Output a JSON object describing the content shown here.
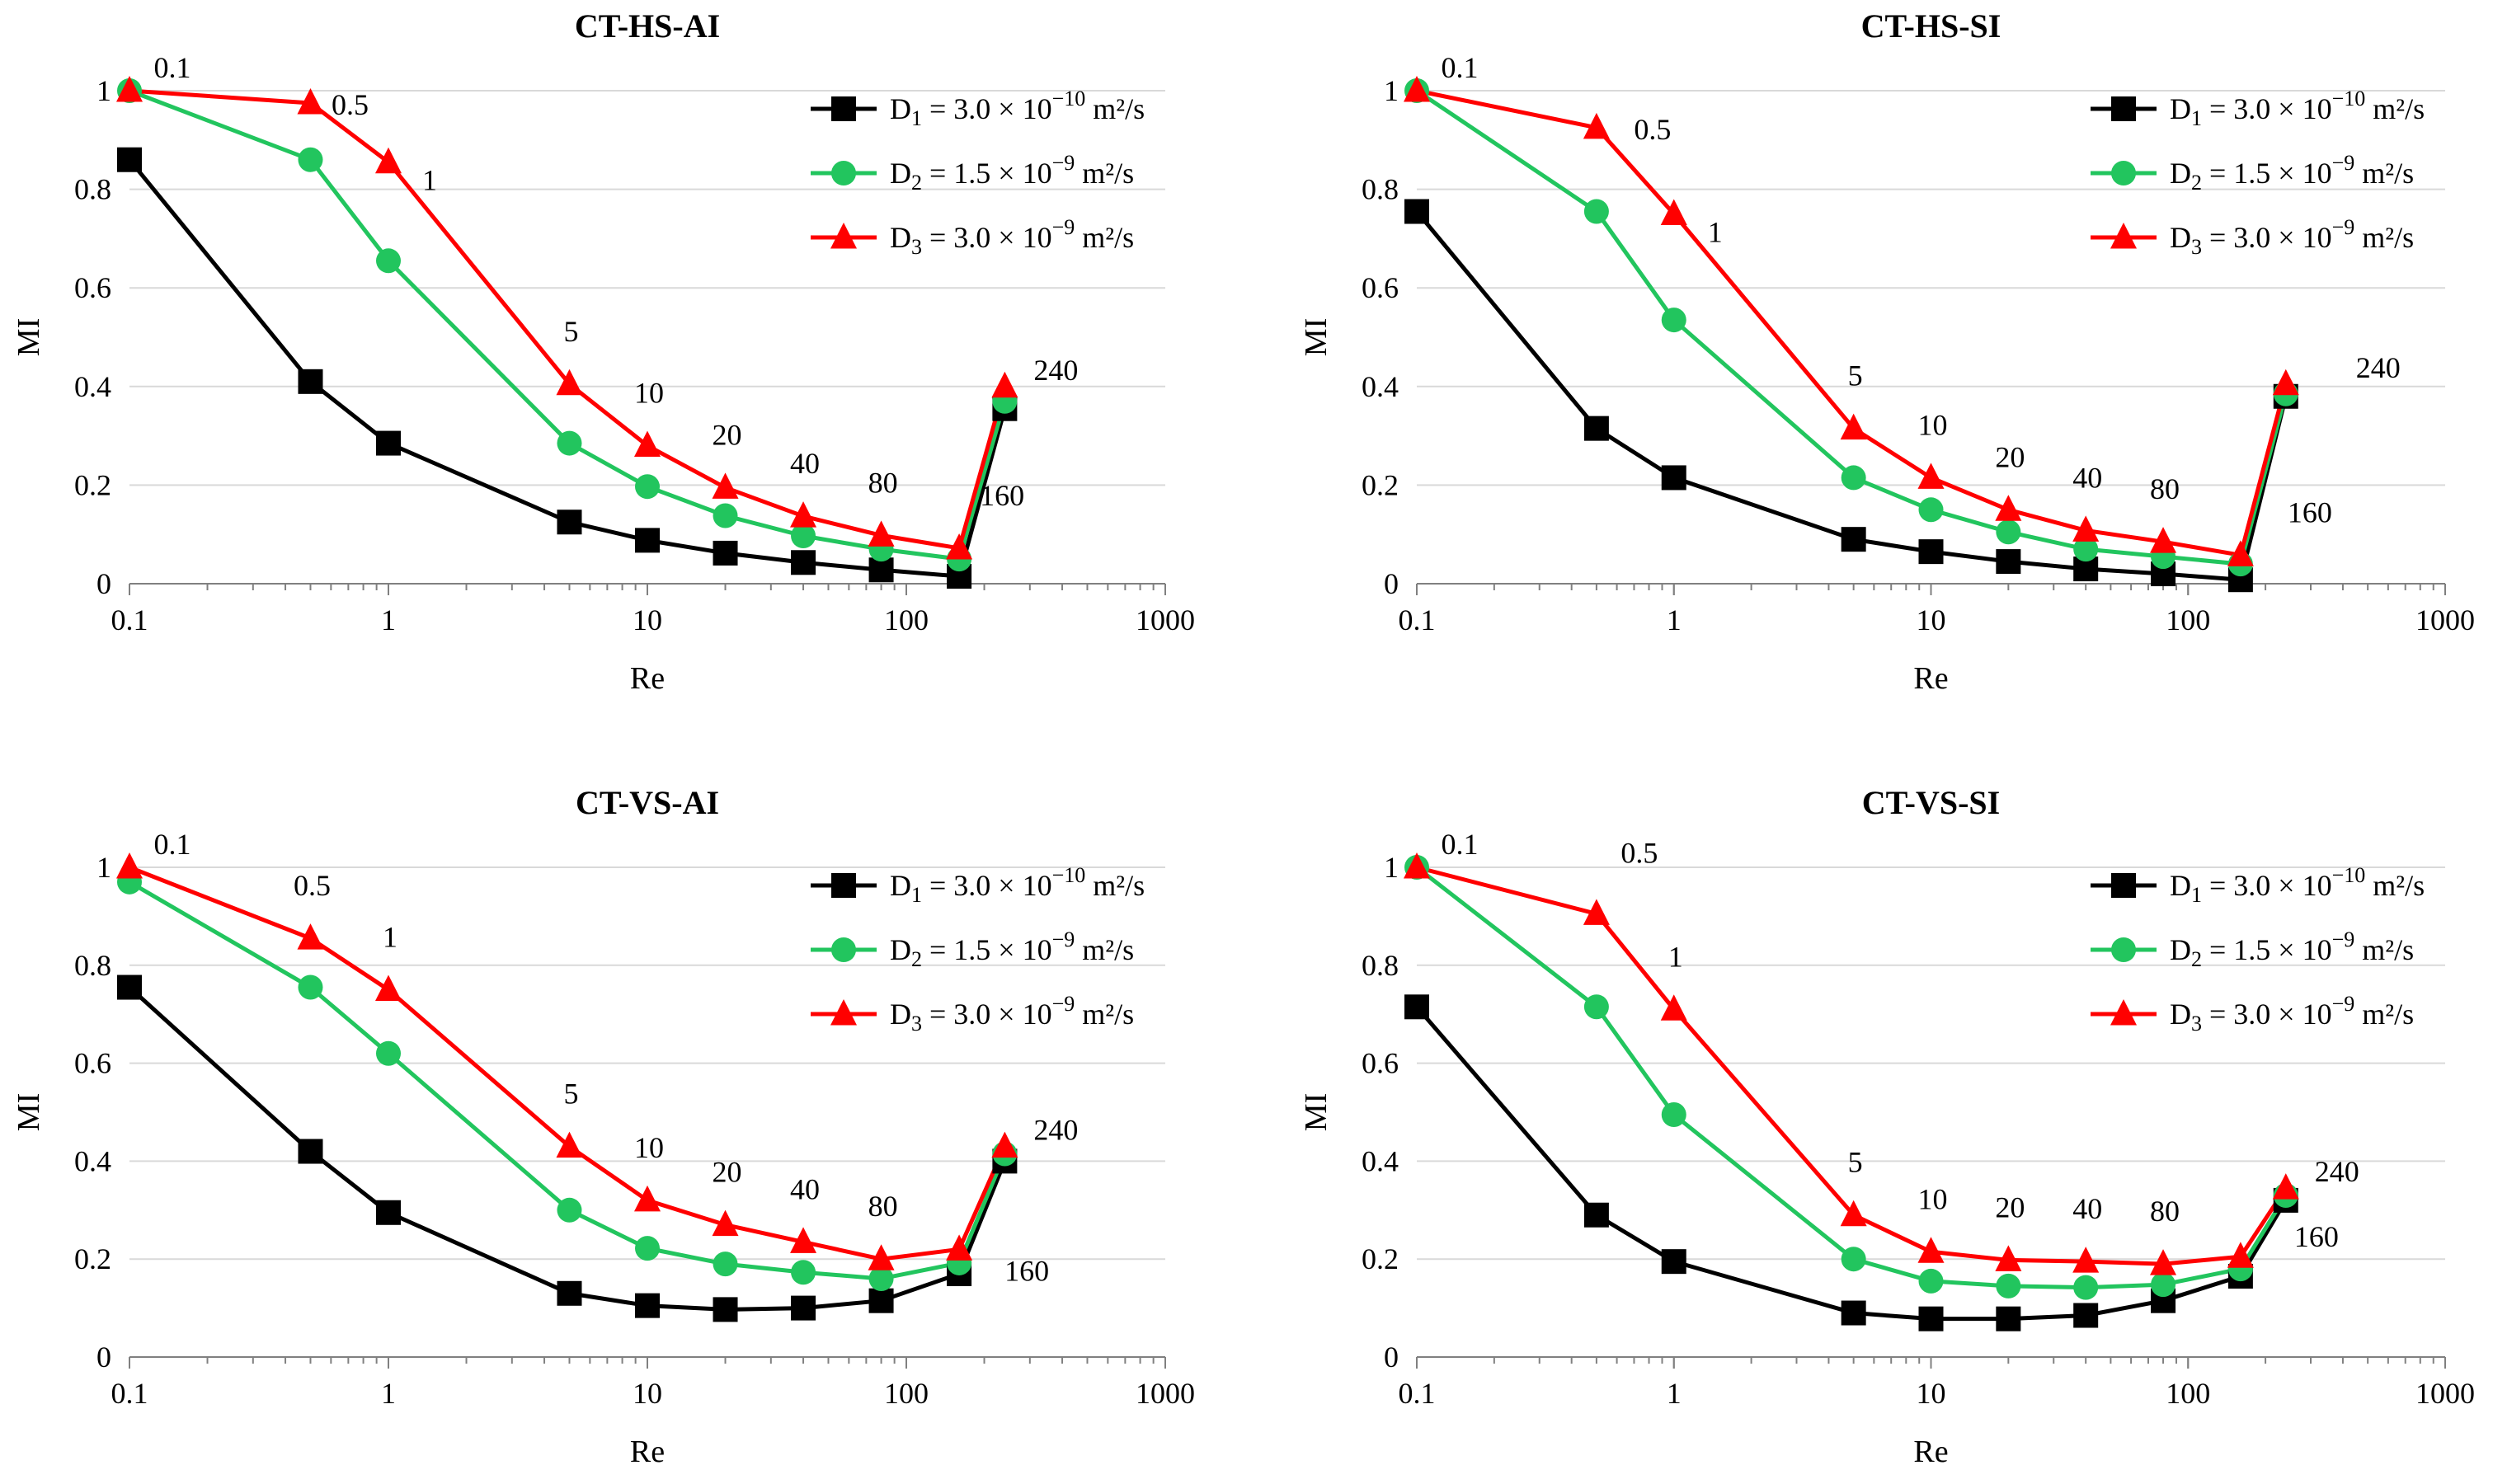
{
  "legend": [
    {
      "pre": "D",
      "sub": "1",
      "mid": " = 3.0 × 10",
      "sup": "−10",
      "post": " m²/s"
    },
    {
      "pre": "D",
      "sub": "2",
      "mid": " = 1.5 × 10",
      "sup": "−9",
      "post": " m²/s"
    },
    {
      "pre": "D",
      "sub": "3",
      "mid": " = 3.0 × 10",
      "sup": "−9",
      "post": " m²/s"
    }
  ],
  "series_colors": {
    "D1": "#000000",
    "D2": "#22C55E",
    "D3": "#FF0000"
  },
  "marker_shapes": {
    "D1": "square",
    "D2": "circle",
    "D3": "triangle"
  },
  "x_tick_labels": [
    "0.1",
    "1",
    "10",
    "100",
    "1000"
  ],
  "y_tick_labels": [
    "0",
    "0.2",
    "0.4",
    "0.6",
    "0.8",
    "1"
  ],
  "chart_data": [
    {
      "type": "line",
      "title": "CT-HS-AI",
      "xlabel": "Re",
      "ylabel": "MI",
      "xscale": "log",
      "xlim": [
        0.1,
        1000
      ],
      "ylim": [
        0,
        1
      ],
      "x": [
        0.1,
        0.5,
        1,
        5,
        10,
        20,
        40,
        80,
        160,
        240
      ],
      "series": [
        {
          "name": "D1 = 3.0 × 10^−10 m²/s",
          "values": [
            0.86,
            0.41,
            0.285,
            0.125,
            0.088,
            0.062,
            0.043,
            0.028,
            0.015,
            0.355
          ]
        },
        {
          "name": "D2 = 1.5 × 10^−9 m²/s",
          "values": [
            1.0,
            0.86,
            0.655,
            0.285,
            0.197,
            0.138,
            0.097,
            0.07,
            0.05,
            0.37
          ]
        },
        {
          "name": "D3 = 3.0 × 10^−9 m²/s",
          "values": [
            1.0,
            0.975,
            0.855,
            0.405,
            0.28,
            0.195,
            0.137,
            0.098,
            0.072,
            0.4
          ]
        }
      ],
      "point_labels": [
        "0.1",
        "0.5",
        "1",
        "5",
        "10",
        "20",
        "40",
        "80",
        "160",
        "240"
      ]
    },
    {
      "type": "line",
      "title": "CT-HS-SI",
      "xlabel": "Re",
      "ylabel": "MI",
      "xscale": "log",
      "xlim": [
        0.1,
        1000
      ],
      "ylim": [
        0,
        1
      ],
      "x": [
        0.1,
        0.5,
        1,
        5,
        10,
        20,
        40,
        80,
        160,
        240
      ],
      "series": [
        {
          "name": "D1 = 3.0 × 10^−10 m²/s",
          "values": [
            0.755,
            0.315,
            0.215,
            0.09,
            0.065,
            0.045,
            0.03,
            0.02,
            0.008,
            0.38
          ]
        },
        {
          "name": "D2 = 1.5 × 10^−9 m²/s",
          "values": [
            1.0,
            0.755,
            0.535,
            0.215,
            0.15,
            0.105,
            0.07,
            0.055,
            0.04,
            0.385
          ]
        },
        {
          "name": "D3 = 3.0 × 10^−9 m²/s",
          "values": [
            1.0,
            0.925,
            0.75,
            0.315,
            0.215,
            0.15,
            0.108,
            0.085,
            0.058,
            0.405
          ]
        }
      ],
      "point_labels": [
        "0.1",
        "0.5",
        "1",
        "5",
        "10",
        "20",
        "40",
        "80",
        "160",
        "240"
      ]
    },
    {
      "type": "line",
      "title": "CT-VS-AI",
      "xlabel": "Re",
      "ylabel": "MI",
      "xscale": "log",
      "xlim": [
        0.1,
        1000
      ],
      "ylim": [
        0,
        1
      ],
      "x": [
        0.1,
        0.5,
        1,
        5,
        10,
        20,
        40,
        80,
        160,
        240
      ],
      "series": [
        {
          "name": "D1 = 3.0 × 10^−10 m²/s",
          "values": [
            0.755,
            0.42,
            0.295,
            0.13,
            0.105,
            0.097,
            0.1,
            0.115,
            0.17,
            0.4
          ]
        },
        {
          "name": "D2 = 1.5 × 10^−9 m²/s",
          "values": [
            0.97,
            0.755,
            0.62,
            0.3,
            0.222,
            0.19,
            0.173,
            0.16,
            0.192,
            0.415
          ]
        },
        {
          "name": "D3 = 3.0 × 10^−9 m²/s",
          "values": [
            1.0,
            0.855,
            0.75,
            0.43,
            0.32,
            0.27,
            0.235,
            0.2,
            0.22,
            0.43
          ]
        }
      ],
      "point_labels": [
        "0.1",
        "0.5",
        "1",
        "5",
        "10",
        "20",
        "40",
        "80",
        "160",
        "240"
      ]
    },
    {
      "type": "line",
      "title": "CT-VS-SI",
      "xlabel": "Re",
      "ylabel": "MI",
      "xscale": "log",
      "xlim": [
        0.1,
        1000
      ],
      "ylim": [
        0,
        1
      ],
      "x": [
        0.1,
        0.5,
        1,
        5,
        10,
        20,
        40,
        80,
        160,
        240
      ],
      "series": [
        {
          "name": "D1 = 3.0 × 10^−10 m²/s",
          "values": [
            0.715,
            0.29,
            0.195,
            0.09,
            0.078,
            0.078,
            0.085,
            0.115,
            0.165,
            0.32
          ]
        },
        {
          "name": "D2 = 1.5 × 10^−9 m²/s",
          "values": [
            1.0,
            0.715,
            0.495,
            0.2,
            0.155,
            0.145,
            0.142,
            0.148,
            0.18,
            0.33
          ]
        },
        {
          "name": "D3 = 3.0 × 10^−9 m²/s",
          "values": [
            1.0,
            0.905,
            0.71,
            0.29,
            0.215,
            0.198,
            0.195,
            0.19,
            0.205,
            0.345
          ]
        }
      ],
      "point_labels": [
        "0.1",
        "0.5",
        "1",
        "5",
        "10",
        "20",
        "40",
        "80",
        "160",
        "240"
      ]
    }
  ]
}
